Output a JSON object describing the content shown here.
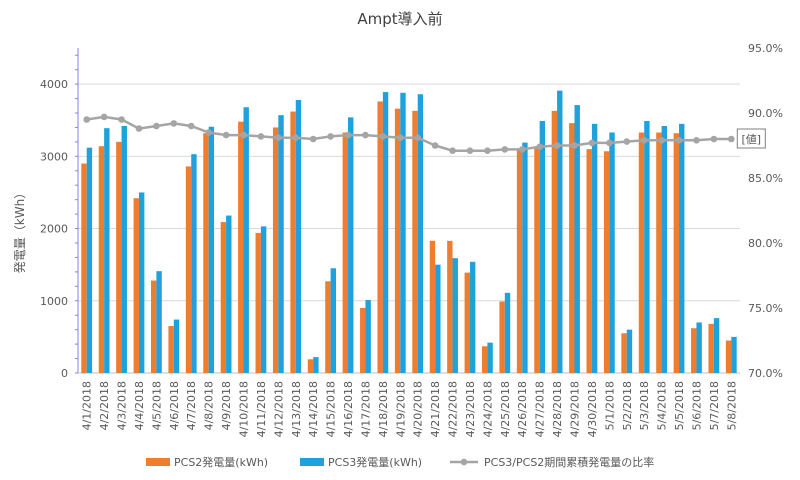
{
  "chart_data": {
    "type": "bar",
    "title": "Ampt導入前",
    "ylabel": "発電量（kWh）",
    "ylim": [
      0,
      4500
    ],
    "y_ticks": [
      0,
      1000,
      2000,
      3000,
      4000
    ],
    "y2lim": [
      0.7,
      0.95
    ],
    "y2_ticks": [
      "70.0%",
      "75.0%",
      "80.0%",
      "85.0%",
      "90.0%",
      "95.0%"
    ],
    "grid": true,
    "legend_position": "bottom",
    "annotation": "[値]",
    "categories": [
      "4/1/2018",
      "4/2/2018",
      "4/3/2018",
      "4/4/2018",
      "4/5/2018",
      "4/6/2018",
      "4/7/2018",
      "4/8/2018",
      "4/9/2018",
      "4/10/2018",
      "4/11/2018",
      "4/12/2018",
      "4/13/2018",
      "4/14/2018",
      "4/15/2018",
      "4/16/2018",
      "4/17/2018",
      "4/18/2018",
      "4/19/2018",
      "4/20/2018",
      "4/21/2018",
      "4/22/2018",
      "4/23/2018",
      "4/24/2018",
      "4/25/2018",
      "4/26/2018",
      "4/27/2018",
      "4/28/2018",
      "4/29/2018",
      "4/30/2018",
      "5/1/2018",
      "5/2/2018",
      "5/3/2018",
      "5/4/2018",
      "5/5/2018",
      "5/6/2018",
      "5/7/2018",
      "5/8/2018"
    ],
    "series": [
      {
        "name": "PCS2発電量(kWh)",
        "type": "bar",
        "axis": "left",
        "color": "#ED7D31",
        "values": [
          2900,
          3140,
          3200,
          2420,
          1280,
          650,
          2860,
          3320,
          2090,
          3480,
          1940,
          3400,
          3620,
          190,
          1270,
          3330,
          900,
          3760,
          3660,
          3630,
          1830,
          1830,
          1390,
          370,
          990,
          3100,
          3130,
          3630,
          3460,
          3100,
          3070,
          550,
          3330,
          3330,
          3320,
          620,
          680,
          450
        ]
      },
      {
        "name": "PCS3発電量(kWh)",
        "type": "bar",
        "axis": "left",
        "color": "#1FA2DC",
        "values": [
          3120,
          3390,
          3420,
          2500,
          1410,
          740,
          3030,
          3410,
          2180,
          3680,
          2030,
          3570,
          3780,
          220,
          1450,
          3540,
          1010,
          3890,
          3880,
          3860,
          1500,
          1590,
          1540,
          420,
          1110,
          3190,
          3490,
          3910,
          3710,
          3450,
          3330,
          600,
          3490,
          3420,
          3450,
          700,
          760,
          500
        ]
      },
      {
        "name": "PCS3/PCS2期間累積発電量の比率",
        "type": "line",
        "axis": "right",
        "color": "#A5A5A5",
        "values": [
          0.895,
          0.897,
          0.895,
          0.888,
          0.89,
          0.892,
          0.89,
          0.885,
          0.883,
          0.883,
          0.882,
          0.881,
          0.881,
          0.88,
          0.882,
          0.883,
          0.883,
          0.882,
          0.881,
          0.881,
          0.875,
          0.871,
          0.871,
          0.871,
          0.872,
          0.872,
          0.874,
          0.875,
          0.875,
          0.877,
          0.877,
          0.878,
          0.879,
          0.879,
          0.879,
          0.879,
          0.88,
          0.88
        ]
      }
    ]
  }
}
